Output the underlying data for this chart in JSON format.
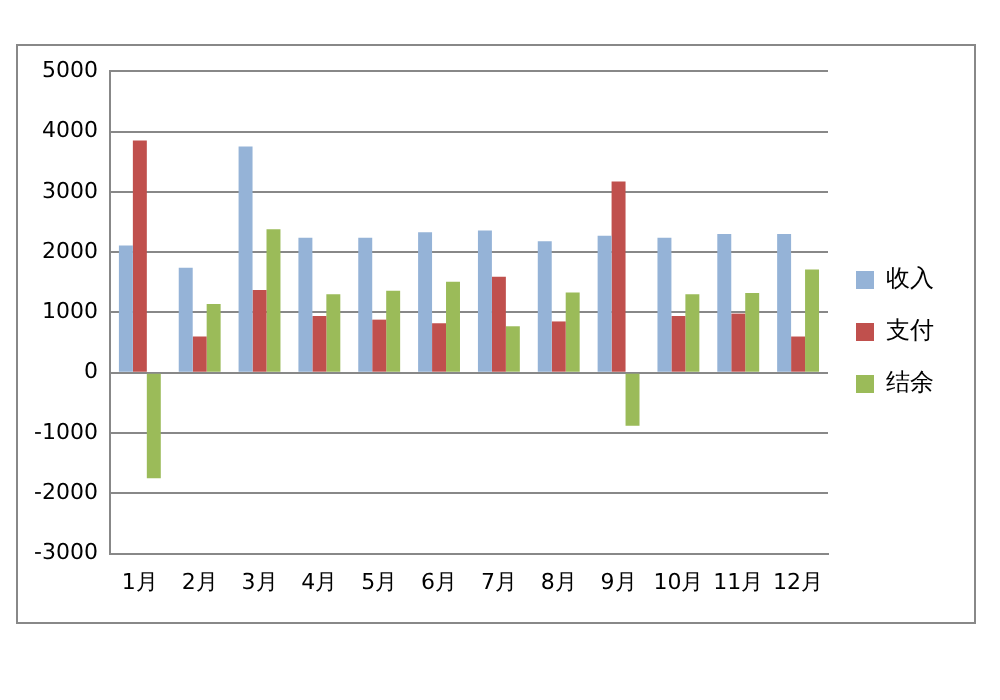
{
  "chart_data": {
    "type": "bar",
    "categories": [
      "1月",
      "2月",
      "3月",
      "4月",
      "5月",
      "6月",
      "7月",
      "8月",
      "9月",
      "10月",
      "11月",
      "12月"
    ],
    "series": [
      {
        "name": "收入",
        "color": "#95b3d7",
        "values": [
          2110,
          1740,
          3750,
          2240,
          2240,
          2330,
          2360,
          2180,
          2270,
          2240,
          2300,
          2300
        ]
      },
      {
        "name": "支付",
        "color": "#c0504d",
        "values": [
          3850,
          600,
          1370,
          940,
          880,
          820,
          1590,
          850,
          3170,
          940,
          980,
          600
        ]
      },
      {
        "name": "结余",
        "color": "#9bbb59",
        "values": [
          -1750,
          1140,
          2380,
          1300,
          1360,
          1510,
          770,
          1330,
          -880,
          1300,
          1320,
          1710
        ]
      }
    ],
    "ylim": [
      -3000,
      5000
    ],
    "yticks": [
      -3000,
      -2000,
      -1000,
      0,
      1000,
      2000,
      3000,
      4000,
      5000
    ],
    "grid": "y",
    "legend": "right"
  }
}
